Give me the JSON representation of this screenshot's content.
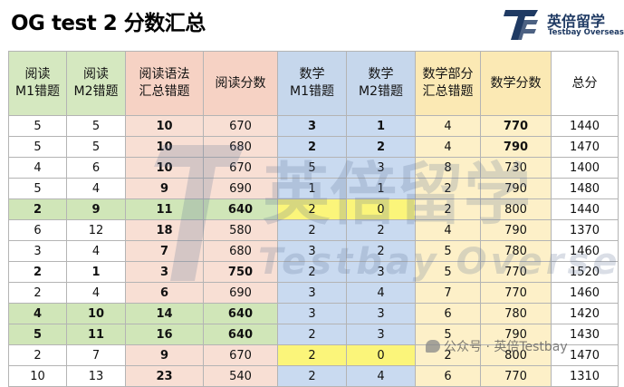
{
  "title": "OG test 2 分数汇总",
  "logo": {
    "name_cn": "英倍留学",
    "name_en": "Testbay Overseas",
    "accent_color": "#1f3a63"
  },
  "watermark": {
    "text_cn": "英倍留学",
    "text_en": "Testbay Overseas",
    "corner_text": "公众号 · 英倍Testbay"
  },
  "table": {
    "headers": [
      {
        "line1": "阅读",
        "line2": "M1错题",
        "color": "green"
      },
      {
        "line1": "阅读",
        "line2": "M2错题",
        "color": "green"
      },
      {
        "line1": "阅读语法",
        "line2": "汇总错题",
        "color": "pink"
      },
      {
        "line1": "阅读分数",
        "line2": "",
        "color": "pink"
      },
      {
        "line1": "数学",
        "line2": "M1错题",
        "color": "blue"
      },
      {
        "line1": "数学",
        "line2": "M2错题",
        "color": "blue"
      },
      {
        "line1": "数学部分",
        "line2": "汇总错题",
        "color": "yellow"
      },
      {
        "line1": "数学分数",
        "line2": "",
        "color": "yellow"
      },
      {
        "line1": "总分",
        "line2": "",
        "color": "white"
      }
    ],
    "rows": [
      [
        "5",
        "5",
        "10",
        "670",
        "3",
        "1",
        "4",
        "770",
        "1440"
      ],
      [
        "5",
        "5",
        "10",
        "680",
        "2",
        "2",
        "4",
        "790",
        "1470"
      ],
      [
        "4",
        "6",
        "10",
        "670",
        "5",
        "3",
        "8",
        "730",
        "1400"
      ],
      [
        "5",
        "4",
        "9",
        "690",
        "1",
        "1",
        "2",
        "790",
        "1480"
      ],
      [
        "2",
        "9",
        "11",
        "640",
        "2",
        "0",
        "2",
        "800",
        "1440"
      ],
      [
        "6",
        "12",
        "18",
        "580",
        "2",
        "2",
        "4",
        "790",
        "1370"
      ],
      [
        "3",
        "4",
        "7",
        "680",
        "3",
        "2",
        "5",
        "780",
        "1460"
      ],
      [
        "2",
        "1",
        "3",
        "750",
        "2",
        "3",
        "5",
        "770",
        "1520"
      ],
      [
        "2",
        "4",
        "6",
        "690",
        "3",
        "4",
        "7",
        "770",
        "1460"
      ],
      [
        "4",
        "10",
        "14",
        "640",
        "3",
        "3",
        "6",
        "780",
        "1420"
      ],
      [
        "5",
        "11",
        "16",
        "640",
        "2",
        "3",
        "5",
        "790",
        "1430"
      ],
      [
        "2",
        "7",
        "9",
        "670",
        "2",
        "0",
        "2",
        "800",
        "1470"
      ],
      [
        "10",
        "13",
        "23",
        "540",
        "2",
        "4",
        "6",
        "770",
        "1310"
      ]
    ]
  }
}
